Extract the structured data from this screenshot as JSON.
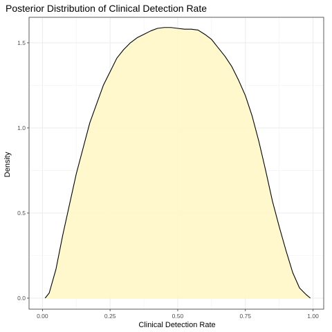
{
  "chart_data": {
    "type": "area",
    "title": "Posterior Distribution of Clinical Detection Rate",
    "xlabel": "Clinical Detection Rate",
    "ylabel": "Density",
    "xlim": [
      -0.0495,
      1.0395
    ],
    "ylim": [
      -0.065,
      1.65
    ],
    "x_ticks": [
      0.0,
      0.25,
      0.5,
      0.75,
      1.0
    ],
    "x_tick_labels": [
      "0.00",
      "0.25",
      "0.50",
      "0.75",
      "1.00"
    ],
    "y_ticks": [
      0.0,
      0.5,
      1.0,
      1.5
    ],
    "y_tick_labels": [
      "0.0",
      "0.5",
      "1.0",
      "1.5"
    ],
    "grid": true,
    "fill_color": "#FFF7C8",
    "line_color": "#000000",
    "series": [
      {
        "x": [
          0.01,
          0.025,
          0.05,
          0.075,
          0.1,
          0.125,
          0.15,
          0.175,
          0.2,
          0.225,
          0.25,
          0.275,
          0.3,
          0.325,
          0.35,
          0.375,
          0.4,
          0.425,
          0.45,
          0.475,
          0.5,
          0.525,
          0.55,
          0.575,
          0.6,
          0.625,
          0.65,
          0.675,
          0.7,
          0.725,
          0.75,
          0.775,
          0.8,
          0.825,
          0.85,
          0.875,
          0.9,
          0.925,
          0.95,
          0.975,
          0.99
        ],
        "y": [
          0.0,
          0.03,
          0.17,
          0.37,
          0.55,
          0.73,
          0.88,
          1.03,
          1.14,
          1.25,
          1.33,
          1.41,
          1.46,
          1.5,
          1.53,
          1.55,
          1.57,
          1.585,
          1.59,
          1.59,
          1.585,
          1.58,
          1.58,
          1.575,
          1.55,
          1.52,
          1.47,
          1.42,
          1.36,
          1.28,
          1.19,
          1.07,
          0.92,
          0.75,
          0.57,
          0.42,
          0.28,
          0.15,
          0.06,
          0.02,
          0.0
        ]
      }
    ]
  }
}
